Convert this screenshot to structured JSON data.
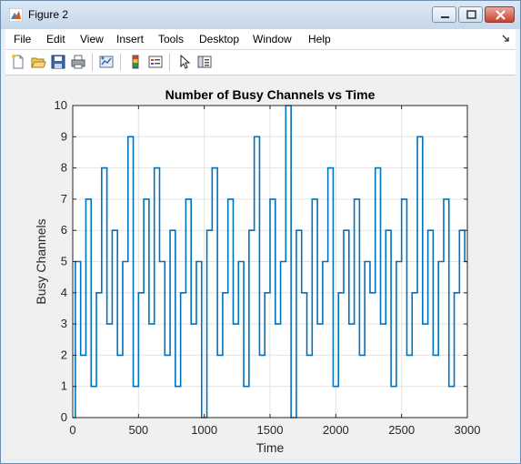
{
  "window": {
    "title": "Figure 2",
    "accent": "#c8412d"
  },
  "menu": {
    "items": [
      "File",
      "Edit",
      "View",
      "Insert",
      "Tools",
      "Desktop",
      "Window",
      "Help"
    ]
  },
  "toolbar": {
    "icons": [
      "new-figure-icon",
      "open-file-icon",
      "save-icon",
      "print-icon",
      "link-plot-icon",
      "insert-colorbar-icon",
      "insert-legend-icon",
      "edit-plot-icon",
      "property-inspector-icon"
    ]
  },
  "chart_data": {
    "type": "line",
    "title": "Number of Busy Channels vs Time",
    "xlabel": "Time",
    "ylabel": "Busy Channels",
    "xlim": [
      0,
      3000
    ],
    "ylim": [
      0,
      10
    ],
    "xticks": [
      0,
      500,
      1000,
      1500,
      2000,
      2500,
      3000
    ],
    "yticks": [
      0,
      1,
      2,
      3,
      4,
      5,
      6,
      7,
      8,
      9,
      10
    ],
    "grid": true,
    "color": "#0072bd",
    "series": [
      {
        "x": [
          0,
          40,
          80,
          120,
          160,
          200,
          240,
          280,
          320,
          360,
          400,
          440,
          480,
          520,
          560,
          600,
          640,
          680,
          720,
          760,
          800,
          840,
          880,
          920,
          960,
          1000,
          1040,
          1080,
          1120,
          1160,
          1200,
          1240,
          1280,
          1320,
          1360,
          1400,
          1440,
          1480,
          1520,
          1560,
          1600,
          1640,
          1680,
          1720,
          1760,
          1800,
          1840,
          1880,
          1920,
          1960,
          2000,
          2040,
          2080,
          2120,
          2160,
          2200,
          2240,
          2280,
          2320,
          2360,
          2400,
          2440,
          2480,
          2520,
          2560,
          2600,
          2640,
          2680,
          2720,
          2760,
          2800,
          2840,
          2880,
          2920,
          2960,
          3000
        ],
        "y": [
          0,
          5,
          2,
          7,
          1,
          4,
          8,
          3,
          6,
          2,
          5,
          9,
          1,
          4,
          7,
          3,
          8,
          5,
          2,
          6,
          1,
          4,
          7,
          3,
          5,
          0,
          6,
          8,
          2,
          4,
          7,
          3,
          5,
          1,
          6,
          9,
          2,
          4,
          7,
          3,
          5,
          10,
          0,
          6,
          4,
          2,
          7,
          3,
          5,
          8,
          1,
          4,
          6,
          3,
          7,
          2,
          5,
          4,
          8,
          3,
          6,
          1,
          5,
          7,
          2,
          4,
          9,
          3,
          6,
          2,
          5,
          7,
          1,
          4,
          6,
          5
        ]
      }
    ]
  }
}
